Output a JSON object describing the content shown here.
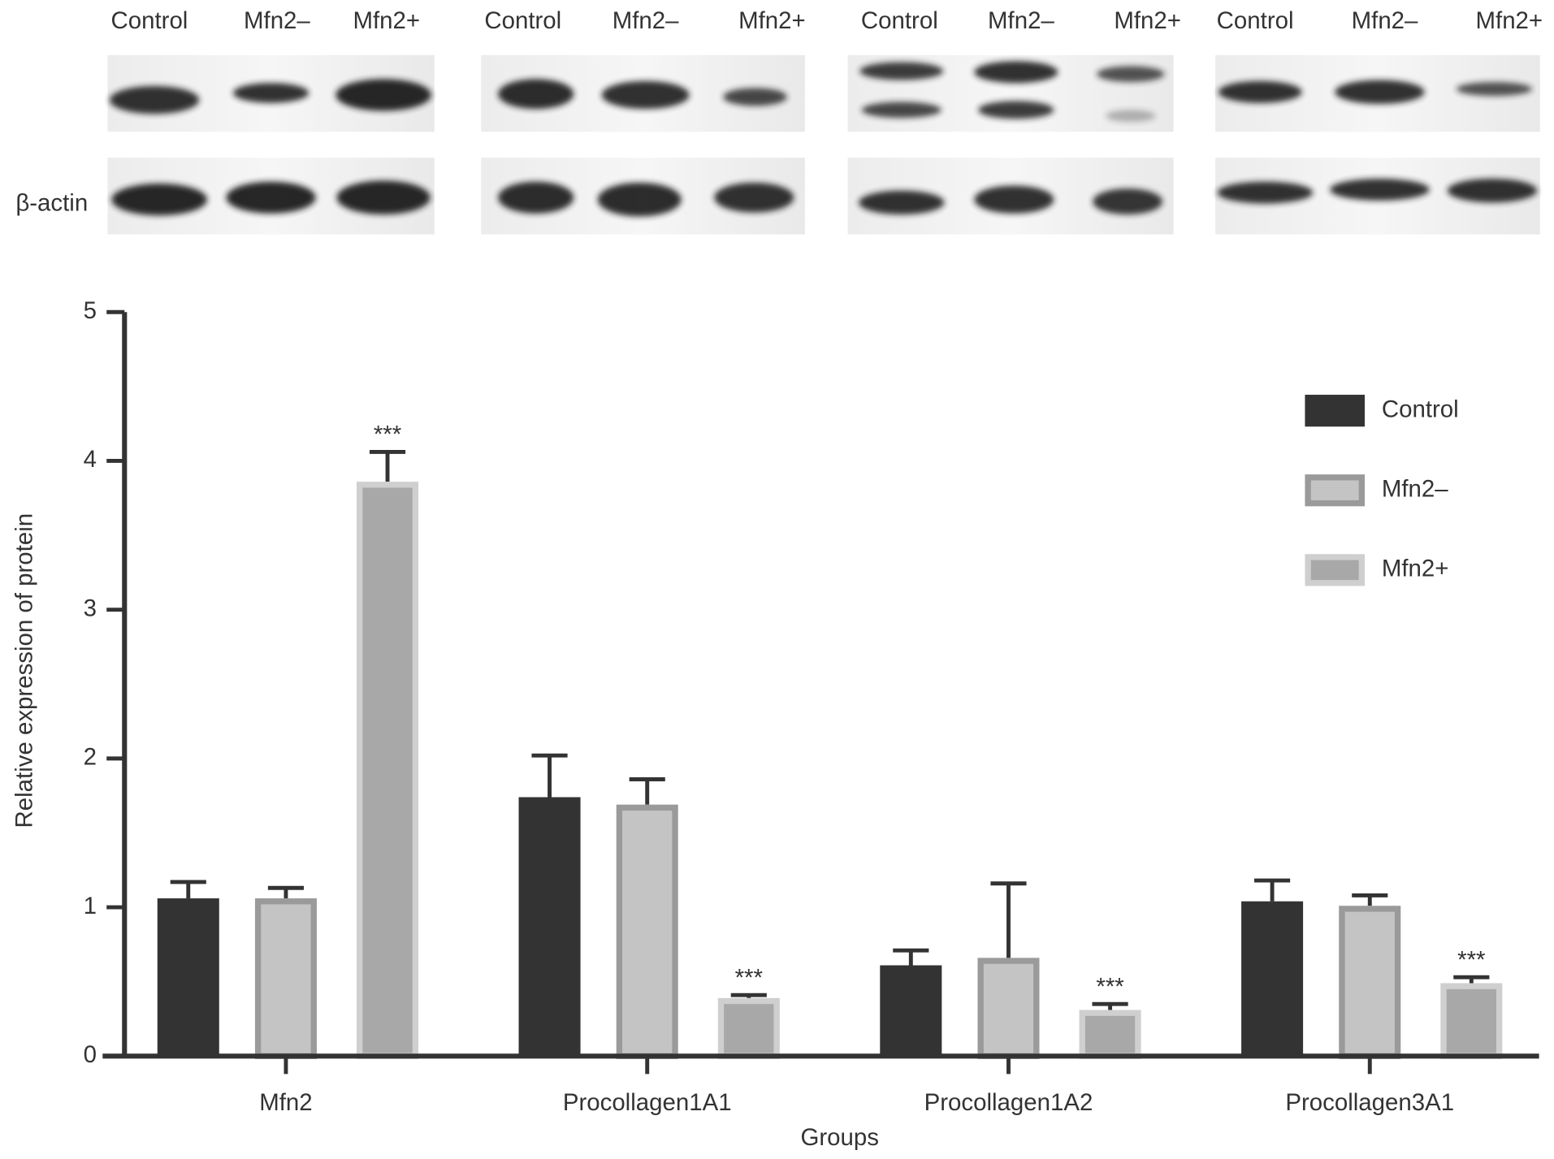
{
  "blots": {
    "panels": [
      {
        "lanes": [
          "Control",
          "Mfn2–",
          "Mfn2+"
        ]
      },
      {
        "lanes": [
          "Control",
          "Mfn2–",
          "Mfn2+"
        ]
      },
      {
        "lanes": [
          "Control",
          "Mfn2–",
          "Mfn2+"
        ]
      },
      {
        "lanes": [
          "Control",
          "Mfn2–",
          "Mfn2+"
        ]
      }
    ],
    "loading_control": "β-actin"
  },
  "chart_data": {
    "type": "bar",
    "y_label": "Relative expression of protein",
    "x_label": "Groups",
    "categories": [
      "Mfn2",
      "Procollagen1A1",
      "Procollagen1A2",
      "Procollagen3A1"
    ],
    "series": [
      {
        "name": "Control",
        "color": "#333333",
        "edge": "#333333",
        "values": [
          1.06,
          1.74,
          0.61,
          1.04
        ],
        "errors": [
          0.11,
          0.28,
          0.1,
          0.14
        ]
      },
      {
        "name": "Mfn2–",
        "color": "#c4c4c4",
        "edge": "#9a9a9a",
        "values": [
          1.06,
          1.69,
          0.66,
          1.01
        ],
        "errors": [
          0.07,
          0.17,
          0.5,
          0.07
        ]
      },
      {
        "name": "Mfn2+",
        "color": "#a8a8a8",
        "edge": "#cfcfcf",
        "values": [
          3.86,
          0.39,
          0.31,
          0.49
        ],
        "errors": [
          0.2,
          0.02,
          0.04,
          0.04
        ],
        "significance": [
          "***",
          "***",
          "***",
          "***"
        ]
      }
    ],
    "ylim": [
      0,
      5
    ],
    "yticks": [
      0,
      1,
      2,
      3,
      4,
      5
    ],
    "legend": "upper right"
  }
}
